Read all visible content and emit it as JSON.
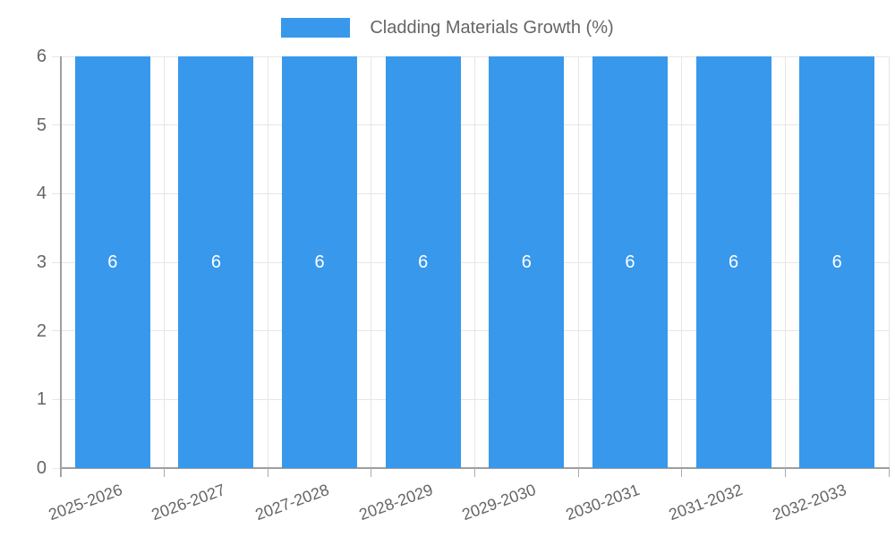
{
  "chart_data": {
    "type": "bar",
    "title": "Cladding Materials Growth (%)",
    "categories": [
      "2025-2026",
      "2026-2027",
      "2027-2028",
      "2028-2029",
      "2029-2030",
      "2030-2031",
      "2031-2032",
      "2032-2033"
    ],
    "series": [
      {
        "name": "Cladding Materials Growth (%)",
        "values": [
          6,
          6,
          6,
          6,
          6,
          6,
          6,
          6
        ]
      }
    ],
    "bar_value_labels": [
      "6",
      "6",
      "6",
      "6",
      "6",
      "6",
      "6",
      "6"
    ],
    "y_ticks": [
      0,
      1,
      2,
      3,
      4,
      5,
      6
    ],
    "ylim": [
      0,
      6
    ],
    "xlabel": "",
    "ylabel": "",
    "grid": true,
    "legend_position": "top-center",
    "x_tick_rotation_deg": -20,
    "colors": {
      "bar": "#3898ec",
      "bar_label": "#ffffff",
      "axis": "#9e9e9e",
      "grid": "#e6e6e6",
      "x_tick_mark": "#ababab",
      "tick_label": "#666666",
      "legend_text": "#666666",
      "background": "#ffffff"
    }
  }
}
